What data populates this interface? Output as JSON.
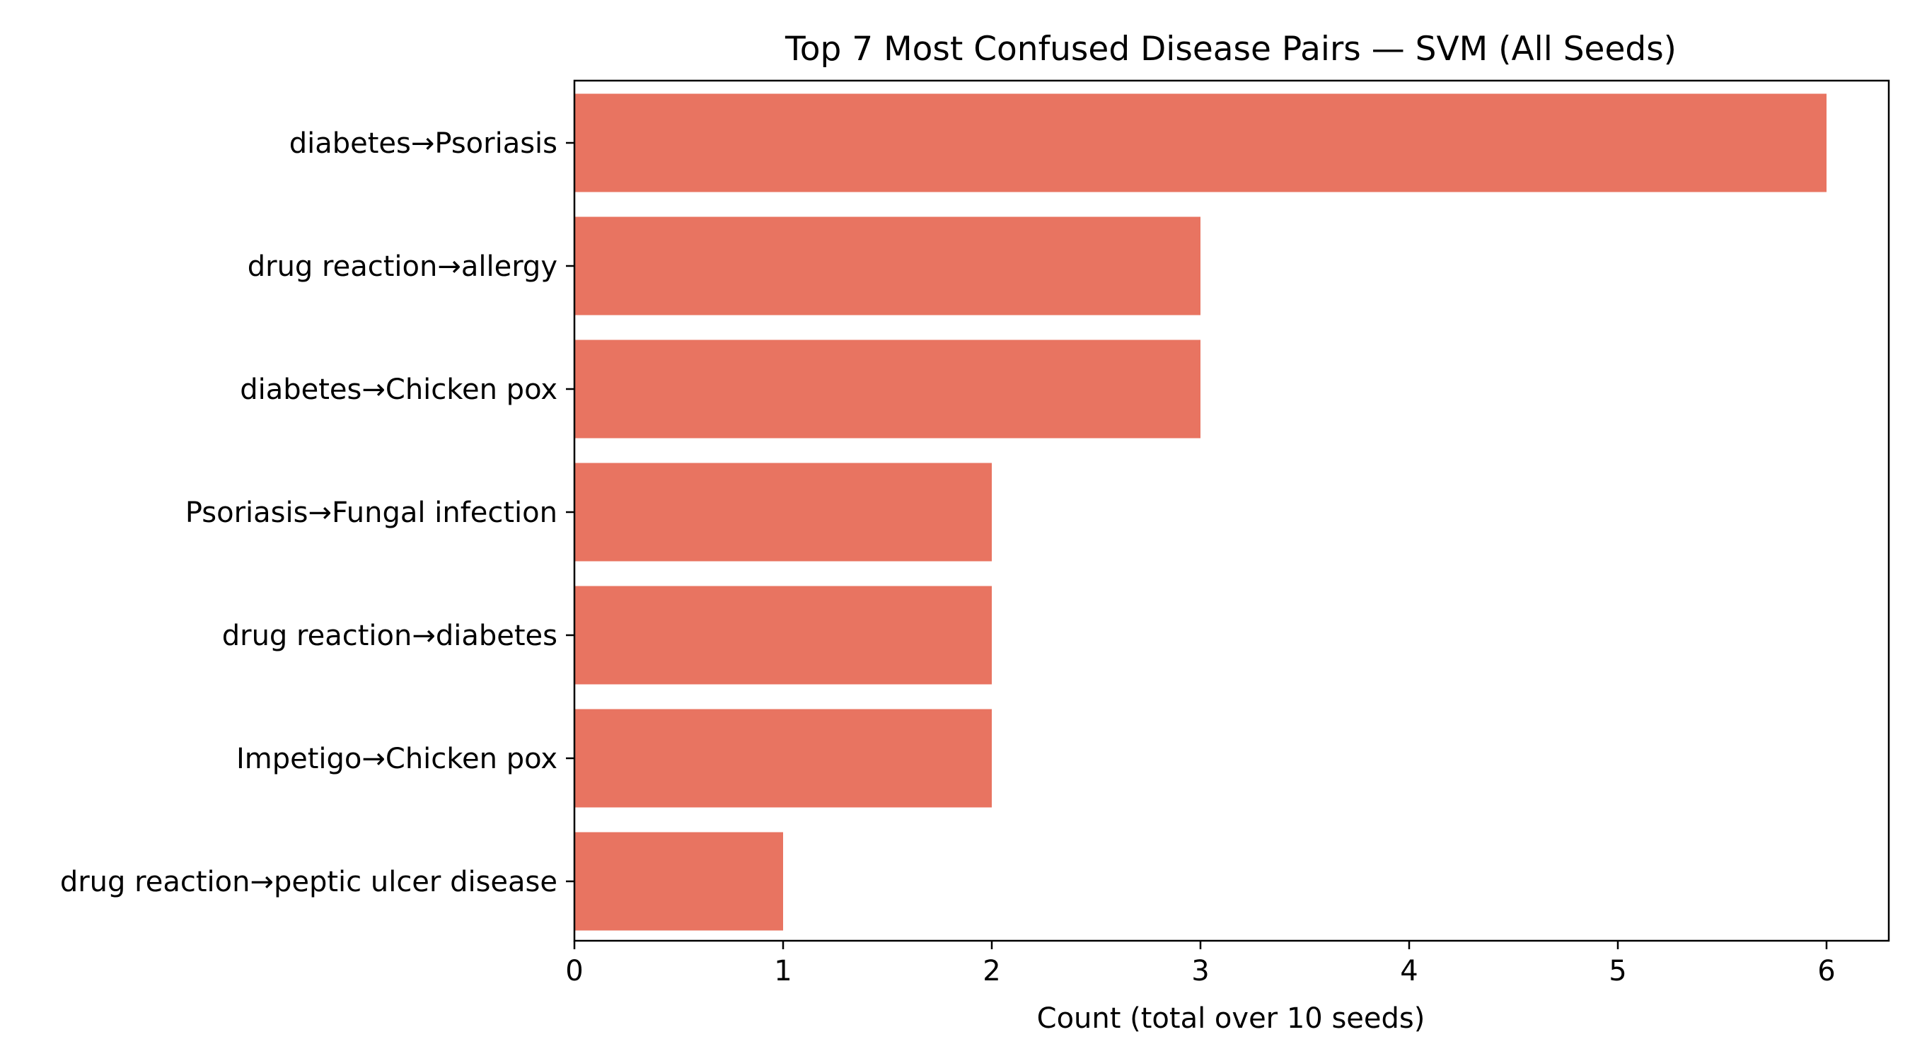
{
  "chart_data": {
    "type": "bar",
    "orientation": "horizontal",
    "title": "Top 7 Most Confused Disease Pairs — SVM (All Seeds)",
    "xlabel": "Count (total over 10 seeds)",
    "ylabel": "",
    "categories": [
      "diabetes→Psoriasis",
      "drug reaction→allergy",
      "diabetes→Chicken pox",
      "Psoriasis→Fungal infection",
      "drug reaction→diabetes",
      "Impetigo→Chicken pox",
      "drug reaction→peptic ulcer disease"
    ],
    "values": [
      6,
      3,
      3,
      2,
      2,
      2,
      1
    ],
    "xlim": [
      0,
      6.3
    ],
    "xticks": [
      0,
      1,
      2,
      3,
      4,
      5,
      6
    ],
    "grid": false,
    "legend": "none",
    "bar_color": "#e87461"
  }
}
